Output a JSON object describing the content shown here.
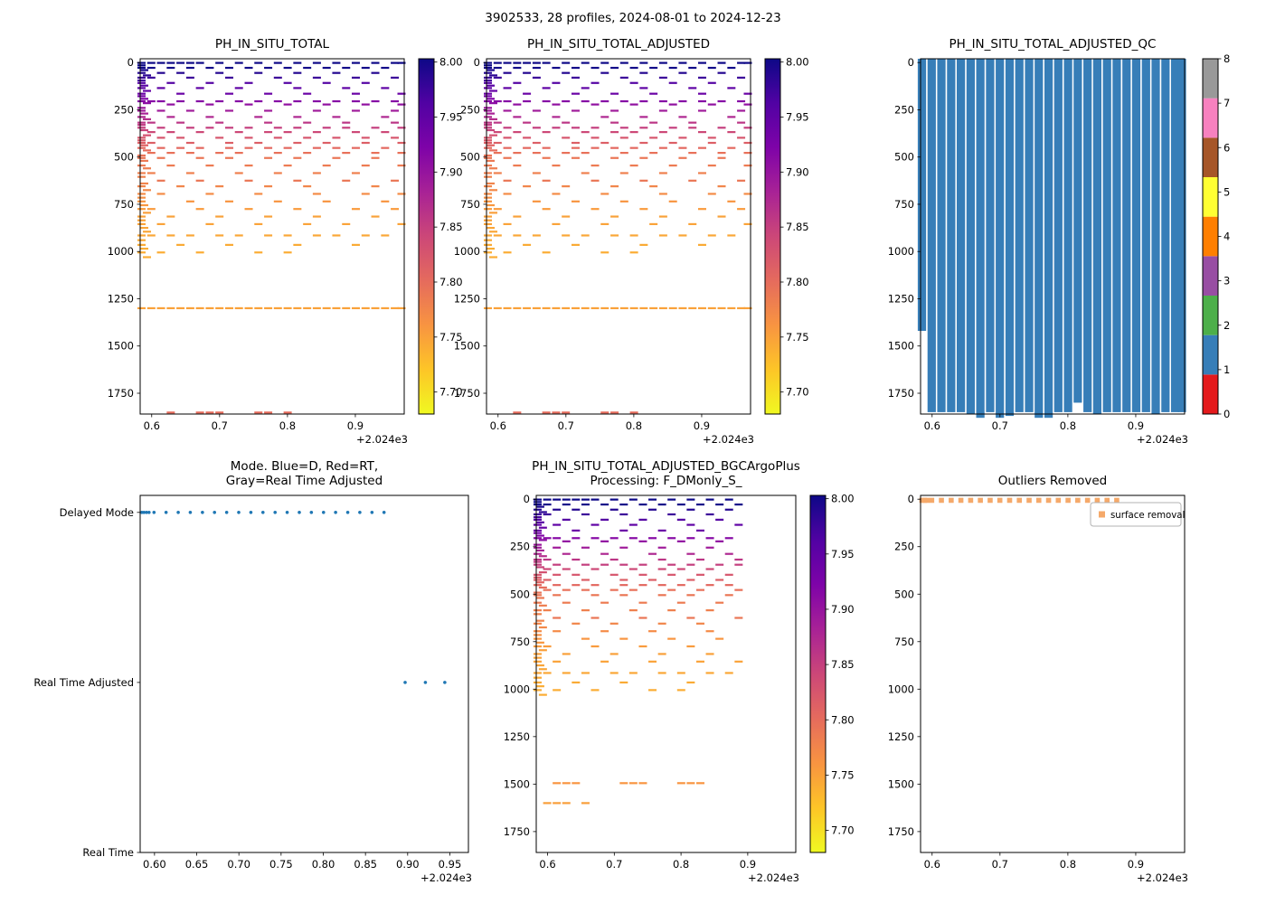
{
  "figure_title": "3902533, 28 profiles, 2024-08-01 to 2024-12-23",
  "colors": {
    "qc_bar": "#377eb8",
    "mode_dot": "#1f77b4",
    "outlier_marker": "#f5a96a",
    "set1": [
      "#e41a1c",
      "#377eb8",
      "#4daf4a",
      "#984ea3",
      "#ff7f00",
      "#ffff33",
      "#a65628",
      "#f781bf",
      "#999999"
    ],
    "plasma_stops": [
      [
        0,
        "#0d0887"
      ],
      [
        0.125,
        "#5102a3"
      ],
      [
        0.25,
        "#7e03a8"
      ],
      [
        0.375,
        "#a82296"
      ],
      [
        0.5,
        "#cc4778"
      ],
      [
        0.625,
        "#e56b5d"
      ],
      [
        0.75,
        "#f89441"
      ],
      [
        0.875,
        "#fdc527"
      ],
      [
        1,
        "#f0f921"
      ]
    ]
  },
  "profiles_x": [
    0.585,
    0.5994,
    0.6137,
    0.6281,
    0.6424,
    0.6568,
    0.6711,
    0.6855,
    0.6998,
    0.7142,
    0.7285,
    0.7429,
    0.7572,
    0.7716,
    0.7859,
    0.8003,
    0.8146,
    0.829,
    0.8433,
    0.8577,
    0.872,
    0.8864,
    0.9007,
    0.9151,
    0.9294,
    0.9438,
    0.9581,
    0.968
  ],
  "chart_data": [
    {
      "id": "ph_total",
      "type": "scatter",
      "title": "PH_IN_SITU_TOTAL",
      "xlim": [
        0.583,
        0.972
      ],
      "ylim": [
        -20,
        1860
      ],
      "y_inverted": true,
      "xticks": [
        0.6,
        0.7,
        0.8,
        0.9
      ],
      "xtick_labels": [
        "0.6",
        "0.7",
        "0.8",
        "0.9"
      ],
      "yticks": [
        0,
        250,
        500,
        750,
        1000,
        1250,
        1500,
        1750
      ],
      "ytick_labels": [
        "0",
        "250",
        "500",
        "750",
        "1000",
        "1250",
        "1500",
        "1750"
      ],
      "x_offset_label": "+2.024e3",
      "colorbar": {
        "vmin": 7.68,
        "vmax": 8.003,
        "ticks": [
          8.0,
          7.95,
          7.9,
          7.85,
          7.8,
          7.75,
          7.7
        ],
        "tick_labels": [
          "8.00",
          "7.95",
          "7.90",
          "7.85",
          "7.80",
          "7.75",
          "7.70"
        ]
      },
      "rows": [
        {
          "d": 2,
          "ph": 8.01,
          "xs": [
            0,
            1,
            2,
            3,
            4,
            5,
            6,
            8,
            10,
            12,
            14,
            16,
            18,
            20,
            22,
            24,
            26,
            27
          ]
        },
        {
          "d": 28,
          "ph": 8.0,
          "xs": [
            0,
            1,
            3,
            5,
            7,
            9,
            11,
            13,
            15,
            17,
            19,
            21,
            23,
            25
          ]
        },
        {
          "d": 55,
          "ph": 7.99,
          "xs": [
            0,
            2,
            4,
            8,
            12,
            16,
            20,
            24
          ]
        },
        {
          "d": 80,
          "ph": 7.975,
          "xs": [
            0,
            1,
            5,
            9,
            14,
            18,
            22,
            26
          ]
        },
        {
          "d": 108,
          "ph": 7.96,
          "xs": [
            0,
            3,
            7,
            11,
            15,
            19,
            23
          ]
        },
        {
          "d": 135,
          "ph": 7.95,
          "xs": [
            0,
            2,
            6,
            10,
            16,
            21,
            25
          ]
        },
        {
          "d": 165,
          "ph": 7.94,
          "xs": [
            0,
            4,
            9,
            13,
            17,
            22,
            27
          ]
        },
        {
          "d": 205,
          "ph": 7.915,
          "xs": [
            0,
            1,
            2,
            4,
            6,
            8,
            10,
            12,
            14,
            16,
            18,
            20,
            22,
            24,
            26
          ]
        },
        {
          "d": 222,
          "ph": 7.905,
          "xs": [
            3,
            7,
            11,
            15,
            19,
            23,
            27
          ]
        },
        {
          "d": 255,
          "ph": 7.89,
          "xs": [
            0,
            2,
            5,
            9,
            13,
            18,
            22,
            26
          ]
        },
        {
          "d": 288,
          "ph": 7.875,
          "xs": [
            0,
            3,
            7,
            12,
            16,
            20,
            25
          ]
        },
        {
          "d": 318,
          "ph": 7.86,
          "xs": [
            0,
            1,
            4,
            8,
            13,
            17,
            21,
            26
          ]
        },
        {
          "d": 345,
          "ph": 7.85,
          "xs": [
            0,
            2,
            5,
            7,
            9,
            11,
            14,
            16,
            19,
            21,
            24,
            27
          ]
        },
        {
          "d": 368,
          "ph": 7.84,
          "xs": [
            1,
            3,
            6,
            10,
            13,
            15,
            18,
            22,
            25
          ]
        },
        {
          "d": 398,
          "ph": 7.825,
          "xs": [
            0,
            2,
            4,
            8,
            11,
            14,
            17,
            20,
            23,
            26
          ]
        },
        {
          "d": 425,
          "ph": 7.815,
          "xs": [
            0,
            1,
            5,
            9,
            12,
            16,
            19,
            23,
            27
          ]
        },
        {
          "d": 452,
          "ph": 7.805,
          "xs": [
            0,
            2,
            4,
            6,
            9,
            11,
            13,
            15,
            18,
            20,
            22,
            25
          ]
        },
        {
          "d": 478,
          "ph": 7.795,
          "xs": [
            1,
            3,
            5,
            8,
            10,
            14,
            17,
            21,
            24,
            27
          ]
        },
        {
          "d": 505,
          "ph": 7.79,
          "xs": [
            0,
            2,
            6,
            9,
            13,
            16,
            20,
            24
          ]
        },
        {
          "d": 545,
          "ph": 7.785,
          "xs": [
            0,
            3,
            7,
            11,
            15,
            19,
            23,
            27
          ]
        },
        {
          "d": 585,
          "ph": 7.78,
          "xs": [
            0,
            1,
            5,
            10,
            14,
            18,
            22
          ]
        },
        {
          "d": 625,
          "ph": 7.79,
          "xs": [
            2,
            6,
            11,
            16,
            21,
            26
          ]
        },
        {
          "d": 655,
          "ph": 7.775,
          "xs": [
            0,
            4,
            8,
            13,
            17,
            24
          ]
        },
        {
          "d": 695,
          "ph": 7.77,
          "xs": [
            0,
            2,
            7,
            12,
            18,
            23,
            27
          ]
        },
        {
          "d": 735,
          "ph": 7.76,
          "xs": [
            0,
            5,
            9,
            14,
            19,
            25
          ]
        },
        {
          "d": 775,
          "ph": 7.755,
          "xs": [
            0,
            1,
            6,
            11,
            16,
            22,
            26
          ]
        },
        {
          "d": 815,
          "ph": 7.75,
          "xs": [
            0,
            3,
            8,
            13,
            18,
            24
          ]
        },
        {
          "d": 855,
          "ph": 7.748,
          "xs": [
            0,
            2,
            7,
            12,
            17,
            21,
            27
          ]
        },
        {
          "d": 915,
          "ph": 7.745,
          "xs": [
            0,
            1,
            3,
            5,
            8,
            10,
            13,
            15,
            18,
            20,
            23,
            25
          ]
        },
        {
          "d": 965,
          "ph": 7.742,
          "xs": [
            0,
            4,
            9,
            16,
            22
          ]
        },
        {
          "d": 1005,
          "ph": 7.74,
          "xs": [
            0,
            2,
            6,
            12,
            15
          ]
        },
        {
          "d": 1300,
          "ph": 7.75,
          "xs": [
            0,
            1,
            2,
            3,
            4,
            5,
            6,
            7,
            8,
            9,
            10,
            11,
            12,
            13,
            14,
            15,
            16,
            17,
            18,
            19,
            20,
            21,
            22,
            23,
            24,
            25,
            26,
            27
          ]
        },
        {
          "d": 1852,
          "ph": 7.8,
          "xs": [
            3,
            6,
            7,
            8,
            12,
            13,
            15
          ]
        }
      ],
      "left_col": [
        {
          "d": 15,
          "ph": 8.005
        },
        {
          "d": 40,
          "ph": 7.995
        },
        {
          "d": 68,
          "ph": 7.985
        },
        {
          "d": 95,
          "ph": 7.968
        },
        {
          "d": 122,
          "ph": 7.955
        },
        {
          "d": 150,
          "ph": 7.945
        },
        {
          "d": 178,
          "ph": 7.93
        },
        {
          "d": 192,
          "ph": 7.92
        },
        {
          "d": 215,
          "ph": 7.91
        },
        {
          "d": 240,
          "ph": 7.895
        },
        {
          "d": 270,
          "ph": 7.882
        },
        {
          "d": 300,
          "ph": 7.868
        },
        {
          "d": 330,
          "ph": 7.855
        },
        {
          "d": 358,
          "ph": 7.845
        },
        {
          "d": 385,
          "ph": 7.83
        },
        {
          "d": 412,
          "ph": 7.82
        },
        {
          "d": 438,
          "ph": 7.81
        },
        {
          "d": 465,
          "ph": 7.8
        },
        {
          "d": 492,
          "ph": 7.792
        },
        {
          "d": 520,
          "ph": 7.787
        },
        {
          "d": 560,
          "ph": 7.782
        },
        {
          "d": 605,
          "ph": 7.778
        },
        {
          "d": 640,
          "ph": 7.776
        },
        {
          "d": 675,
          "ph": 7.772
        },
        {
          "d": 715,
          "ph": 7.765
        },
        {
          "d": 755,
          "ph": 7.758
        },
        {
          "d": 795,
          "ph": 7.752
        },
        {
          "d": 835,
          "ph": 7.749
        },
        {
          "d": 875,
          "ph": 7.747
        },
        {
          "d": 895,
          "ph": 7.746
        },
        {
          "d": 940,
          "ph": 7.743
        },
        {
          "d": 985,
          "ph": 7.741
        },
        {
          "d": 1030,
          "ph": 7.74
        }
      ]
    },
    {
      "id": "ph_adjusted",
      "type": "scatter",
      "title": "PH_IN_SITU_TOTAL_ADJUSTED",
      "rows_from": "ph_total",
      "xlim": [
        0.583,
        0.972
      ],
      "ylim": [
        -20,
        1860
      ],
      "y_inverted": true,
      "xticks": [
        0.6,
        0.7,
        0.8,
        0.9
      ],
      "xtick_labels": [
        "0.6",
        "0.7",
        "0.8",
        "0.9"
      ],
      "yticks": [
        0,
        250,
        500,
        750,
        1000,
        1250,
        1500,
        1750
      ],
      "ytick_labels": [
        "0",
        "250",
        "500",
        "750",
        "1000",
        "1250",
        "1500",
        "1750"
      ],
      "x_offset_label": "+2.024e3",
      "colorbar": {
        "vmin": 7.68,
        "vmax": 8.003,
        "ticks": [
          8.0,
          7.95,
          7.9,
          7.85,
          7.8,
          7.75,
          7.7
        ],
        "tick_labels": [
          "8.00",
          "7.95",
          "7.90",
          "7.85",
          "7.80",
          "7.75",
          "7.70"
        ]
      }
    },
    {
      "id": "qc",
      "type": "bar",
      "title": "PH_IN_SITU_TOTAL_ADJUSTED_QC",
      "xlim": [
        0.583,
        0.972
      ],
      "ylim": [
        -20,
        1860
      ],
      "y_inverted": true,
      "xticks": [
        0.6,
        0.7,
        0.8,
        0.9
      ],
      "xtick_labels": [
        "0.6",
        "0.7",
        "0.8",
        "0.9"
      ],
      "yticks": [
        0,
        250,
        500,
        750,
        1000,
        1250,
        1500,
        1750
      ],
      "ytick_labels": [
        "0",
        "250",
        "500",
        "750",
        "1000",
        "1250",
        "1500",
        "1750"
      ],
      "x_offset_label": "+2.024e3",
      "qc_value_of_bars": 1,
      "bar_depths": [
        1420,
        1850,
        1850,
        1850,
        1850,
        1860,
        1880,
        1850,
        1880,
        1870,
        1850,
        1850,
        1880,
        1880,
        1850,
        1850,
        1800,
        1850,
        1860,
        1850,
        1850,
        1850,
        1850,
        1850,
        1860,
        1850,
        1850,
        1850
      ],
      "colorbar": {
        "type": "discrete",
        "tick_labels": [
          "0",
          "1",
          "2",
          "3",
          "4",
          "5",
          "6",
          "7",
          "8"
        ]
      }
    },
    {
      "id": "mode",
      "type": "categorical-scatter",
      "title_lines": [
        "Mode. Blue=D, Red=RT,",
        "Gray=Real Time Adjusted"
      ],
      "xlim": [
        0.583,
        0.972
      ],
      "ylim_top": 2.1,
      "ylim_bottom": 0,
      "categories": [
        {
          "label": "Delayed Mode",
          "value": 2
        },
        {
          "label": "Real Time Adjusted",
          "value": 1
        },
        {
          "label": "Real Time",
          "value": 0
        }
      ],
      "xticks": [
        0.6,
        0.65,
        0.7,
        0.75,
        0.8,
        0.85,
        0.9,
        0.95
      ],
      "xtick_labels": [
        "0.60",
        "0.65",
        "0.70",
        "0.75",
        "0.80",
        "0.85",
        "0.90",
        "0.95"
      ],
      "x_offset_label": "+2.024e3",
      "delayed_mode_x_indices": [
        0,
        1,
        2,
        3,
        4,
        5,
        6,
        7,
        8,
        9,
        10,
        11,
        12,
        13,
        14,
        15,
        16,
        17,
        18,
        19,
        20
      ],
      "delayed_mode_extra_x": [
        0.5875,
        0.5905,
        0.5935
      ],
      "rta_x": [
        0.897,
        0.921,
        0.944
      ],
      "rt_x": []
    },
    {
      "id": "bgc",
      "type": "scatter",
      "title_lines": [
        "PH_IN_SITU_TOTAL_ADJUSTED_BGCArgoPlus",
        "Processing: F_DMonly_S_"
      ],
      "rows_from": "ph_total",
      "max_profile_index": 21,
      "max_depth": 1050,
      "extra_rows": [
        {
          "d": 1495,
          "ph": 7.76,
          "xs": [
            2,
            3,
            4,
            9,
            10,
            11,
            15,
            16,
            17
          ]
        },
        {
          "d": 1600,
          "ph": 7.752,
          "xs": [
            1,
            2,
            3,
            5
          ]
        }
      ],
      "xlim": [
        0.583,
        0.972
      ],
      "ylim": [
        -20,
        1860
      ],
      "y_inverted": true,
      "xticks": [
        0.6,
        0.7,
        0.8,
        0.9
      ],
      "xtick_labels": [
        "0.6",
        "0.7",
        "0.8",
        "0.9"
      ],
      "yticks": [
        0,
        250,
        500,
        750,
        1000,
        1250,
        1500,
        1750
      ],
      "ytick_labels": [
        "0",
        "250",
        "500",
        "750",
        "1000",
        "1250",
        "1500",
        "1750"
      ],
      "x_offset_label": "+2.024e3",
      "colorbar": {
        "vmin": 7.68,
        "vmax": 8.003,
        "ticks": [
          8.0,
          7.95,
          7.9,
          7.85,
          7.8,
          7.75,
          7.7
        ],
        "tick_labels": [
          "8.00",
          "7.95",
          "7.90",
          "7.85",
          "7.80",
          "7.75",
          "7.70"
        ]
      }
    },
    {
      "id": "outliers",
      "type": "outlier-scatter",
      "title": "Outliers Removed",
      "legend_label": "surface removal",
      "xlim": [
        0.583,
        0.972
      ],
      "ylim": [
        -20,
        1860
      ],
      "y_inverted": true,
      "xticks": [
        0.6,
        0.7,
        0.8,
        0.9
      ],
      "xtick_labels": [
        "0.6",
        "0.7",
        "0.8",
        "0.9"
      ],
      "yticks": [
        0,
        250,
        500,
        750,
        1000,
        1250,
        1500,
        1750
      ],
      "ytick_labels": [
        "0",
        "250",
        "500",
        "750",
        "1000",
        "1250",
        "1500",
        "1750"
      ],
      "x_offset_label": "+2.024e3",
      "square_depth": 6,
      "square_x_indices": [
        0,
        1,
        2,
        3,
        4,
        5,
        6,
        7,
        8,
        9,
        10,
        11,
        12,
        13,
        14,
        15,
        16,
        17,
        18,
        19,
        20
      ],
      "extra_x": [
        0.589,
        0.5925
      ]
    }
  ]
}
